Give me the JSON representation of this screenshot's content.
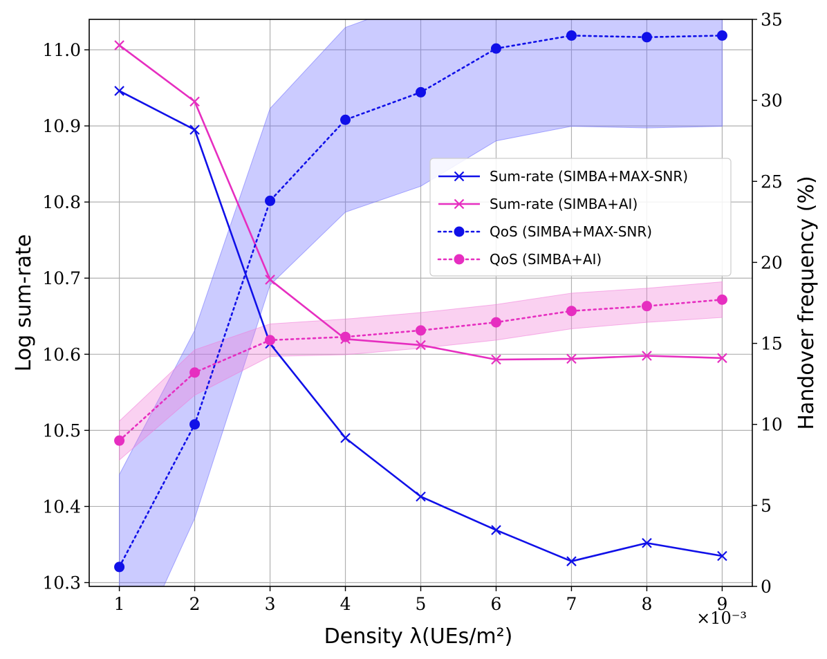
{
  "chart_data": {
    "type": "line",
    "xlabel": "Density λ(UEs/m²)",
    "x_offset_label": "×10⁻³",
    "ylabel_left": "Log sum-rate",
    "ylabel_right": "Handover frequency (%)",
    "x": [
      1,
      2,
      3,
      4,
      5,
      6,
      7,
      8,
      9
    ],
    "xlim": [
      0.6,
      9.4
    ],
    "ylim_left": [
      10.295,
      11.04
    ],
    "ylim_right": [
      0,
      35
    ],
    "x_ticks": [
      "1",
      "2",
      "3",
      "4",
      "5",
      "6",
      "7",
      "8",
      "9"
    ],
    "y_left_ticks": [
      "10.3",
      "10.4",
      "10.5",
      "10.6",
      "10.7",
      "10.8",
      "10.9",
      "11.0"
    ],
    "y_right_ticks": [
      "0",
      "5",
      "10",
      "15",
      "20",
      "25",
      "30",
      "35"
    ],
    "grid": true,
    "legend_position": "center-right",
    "series": [
      {
        "name": "Sum-rate (SIMBA+MAX-SNR)",
        "axis": "left",
        "style": "solid",
        "marker": "x",
        "color": "#1010e8",
        "values": [
          10.946,
          10.895,
          10.614,
          10.49,
          10.413,
          10.369,
          10.328,
          10.352,
          10.335
        ]
      },
      {
        "name": "Sum-rate (SIMBA+AI)",
        "axis": "left",
        "style": "solid",
        "marker": "x",
        "color": "#e62ec0",
        "values": [
          11.006,
          10.932,
          10.698,
          10.62,
          10.612,
          10.593,
          10.594,
          10.598,
          10.595
        ]
      },
      {
        "name": "QoS (SIMBA+MAX-SNR)",
        "axis": "right",
        "style": "dotted",
        "marker": "o",
        "color": "#1010e8",
        "values": [
          1.2,
          10.0,
          23.8,
          28.8,
          30.5,
          33.2,
          34.0,
          33.9,
          34.0
        ],
        "band_low": [
          -6,
          4.2,
          18.6,
          23.1,
          24.7,
          27.5,
          28.4,
          28.3,
          28.4
        ],
        "band_high": [
          6.9,
          15.8,
          29.5,
          34.5,
          36.2,
          38.9,
          39.6,
          39.5,
          39.6
        ],
        "band_color": "#6b6bff"
      },
      {
        "name": "QoS (SIMBA+AI)",
        "axis": "right",
        "style": "dotted",
        "marker": "o",
        "color": "#e62ec0",
        "values": [
          9.0,
          13.2,
          15.2,
          15.4,
          15.8,
          16.3,
          17.0,
          17.3,
          17.7
        ],
        "band_low": [
          7.8,
          11.8,
          14.2,
          14.3,
          14.7,
          15.2,
          15.9,
          16.3,
          16.6
        ],
        "band_high": [
          10.2,
          14.6,
          16.2,
          16.5,
          16.9,
          17.4,
          18.1,
          18.4,
          18.8
        ],
        "band_color": "#f07ad8"
      }
    ]
  }
}
